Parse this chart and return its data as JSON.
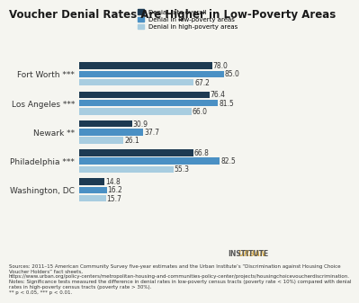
{
  "title": "Voucher Denial Rates Are Higher in Low-Poverty Areas",
  "categories": [
    "Fort Worth ***",
    "Los Angeles ***",
    "Newark **",
    "Philadelphia ***",
    "Washington, DC"
  ],
  "category_labels": [
    "Fort Worth ***",
    "Los Angeles ***",
    "Newark **",
    "Philadelphia ***",
    "Washington, DC"
  ],
  "series": {
    "overall": [
      78.0,
      76.4,
      30.9,
      66.8,
      14.8
    ],
    "low_poverty": [
      85.0,
      81.5,
      37.7,
      82.5,
      16.2
    ],
    "high_poverty": [
      67.2,
      66.0,
      26.1,
      55.3,
      15.7
    ]
  },
  "colors": {
    "overall": "#1d3a52",
    "low_poverty": "#4a90c4",
    "high_poverty": "#a8cde0"
  },
  "legend_labels": [
    "Denial rate overall",
    "Denial in low-poverty areas",
    "Denial in high-poverty areas"
  ],
  "bar_height": 0.22,
  "xlim": [
    0,
    95
  ],
  "sources_text": "Sources: 2011–15 American Community Survey five-year estimates and the Urban Institute’s “Discrimination against Housing Choice Voucher Holders” fact sheets, https://www.urban.org/policy-centers/metropolitan-housing-and-communities-policy-center/projects/housingchoicevoucherdiscrimination.\nNotes: Significance tests measured the difference in denial rates in low-poverty census tracts (poverty rate < 10%) compared with denial rates in high-poverty census tracts (poverty rate > 30%).\n** p < 0.05, *** p < 0.01.",
  "urban_institute_text": "URBAN INSTITUTE",
  "background_color": "#f5f5f0"
}
